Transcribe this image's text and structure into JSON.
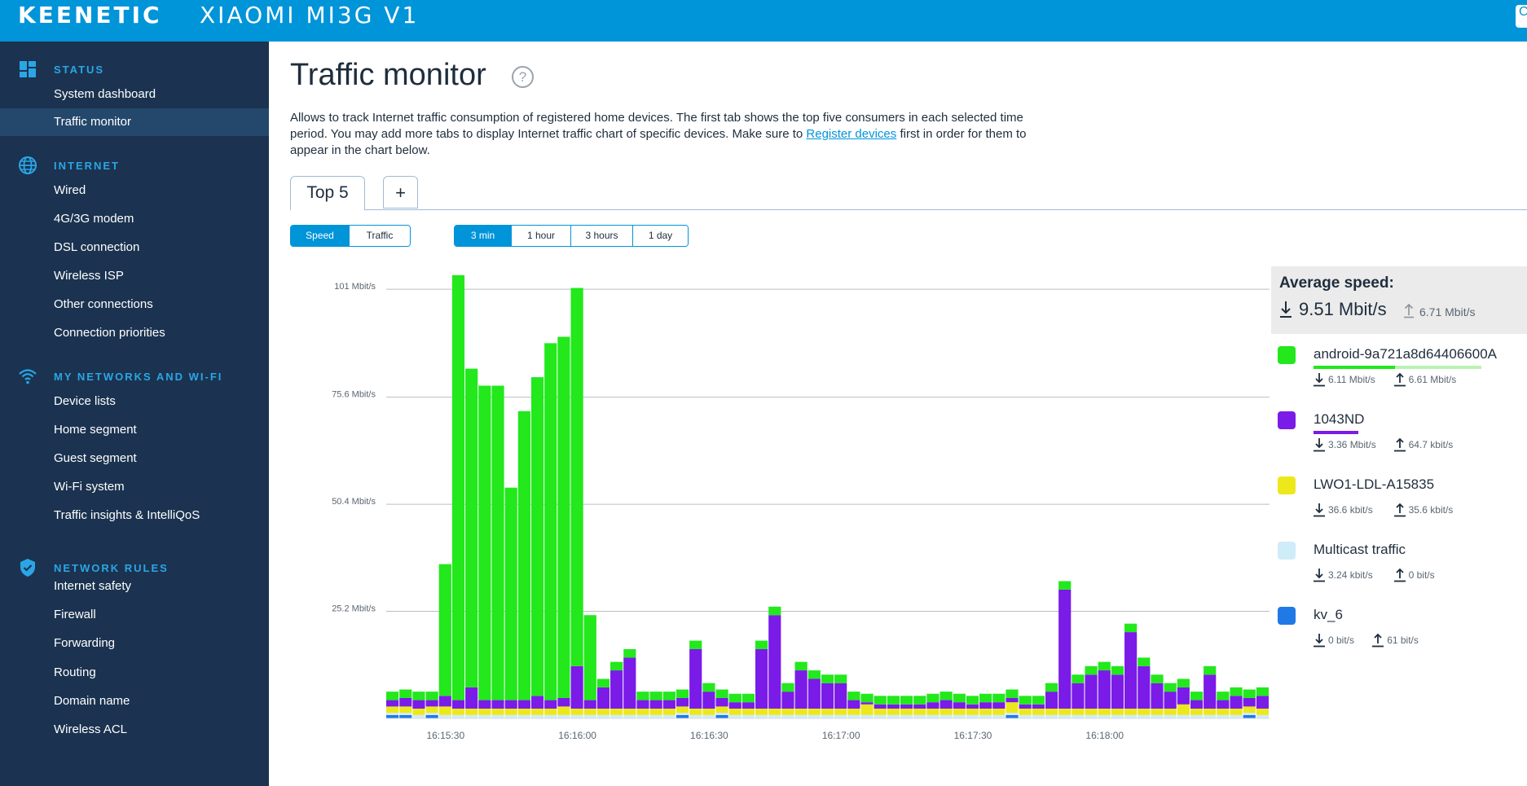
{
  "header": {
    "brand": "KEENETIC",
    "model": "XIAOMI MI3G V1",
    "corner_label": "C"
  },
  "sidebar": {
    "sections": [
      {
        "title": "STATUS",
        "icon": "dashboard-icon",
        "items": [
          "System dashboard",
          "Traffic monitor"
        ]
      },
      {
        "title": "INTERNET",
        "icon": "globe-icon",
        "items": [
          "Wired",
          "4G/3G modem",
          "DSL connection",
          "Wireless ISP",
          "Other connections",
          "Connection priorities"
        ]
      },
      {
        "title": "MY NETWORKS AND WI-FI",
        "icon": "wifi-icon",
        "items": [
          "Device lists",
          "Home segment",
          "Guest segment",
          "Wi-Fi system",
          "Traffic insights & IntelliQoS"
        ]
      },
      {
        "title": "NETWORK RULES",
        "icon": "shield-icon",
        "items": [
          "Internet safety",
          "Firewall",
          "Forwarding",
          "Routing",
          "Domain name",
          "Wireless ACL"
        ]
      }
    ],
    "active_item": "Traffic monitor"
  },
  "main": {
    "title": "Traffic monitor",
    "description_pre": "Allows to track Internet traffic consumption of registered home devices. The first tab shows the top five consumers in each selected time period. You may add more tabs to display Internet traffic chart of specific devices. Make sure to ",
    "description_link": "Register devices",
    "description_post": " first in order for them to appear in the chart below.",
    "tabs": [
      "Top 5",
      "+"
    ],
    "mode_toggle": {
      "options": [
        "Speed",
        "Traffic"
      ],
      "selected": "Speed"
    },
    "period_toggle": {
      "options": [
        "3 min",
        "1 hour",
        "3 hours",
        "1 day"
      ],
      "selected": "3 min"
    }
  },
  "legend": {
    "avg_title": "Average speed:",
    "avg_down": "9.51 Mbit/s",
    "avg_up": "6.71 Mbit/s",
    "devices": [
      {
        "name": "android-9a721a8d64406600A",
        "color": "#22e81c",
        "down": "6.11 Mbit/s",
        "up": "6.61 Mbit/s",
        "share": 0.4
      },
      {
        "name": "1043ND",
        "color": "#7a1be8",
        "down": "3.36 Mbit/s",
        "up": "64.7 kbit/s",
        "share": 0.22
      },
      {
        "name": "LWO1-LDL-A15835",
        "color": "#ece81c",
        "down": "36.6 kbit/s",
        "up": "35.6 kbit/s",
        "share": 0
      },
      {
        "name": "Multicast traffic",
        "color": "#cfecf9",
        "down": "3.24 kbit/s",
        "up": "0 bit/s",
        "share": 0
      },
      {
        "name": "kv_6",
        "color": "#1f7ae6",
        "down": "0 bit/s",
        "up": "61 bit/s",
        "share": 0
      }
    ]
  },
  "chart_data": {
    "type": "bar",
    "stacked": true,
    "y_tick_labels": [
      "101 Mbit/s",
      "75.6 Mbit/s",
      "50.4 Mbit/s",
      "25.2 Mbit/s"
    ],
    "y_ticks": [
      101,
      75.6,
      50.4,
      25.2
    ],
    "ylim": [
      0,
      106
    ],
    "x_tick_labels": [
      "16:15:30",
      "16:16:00",
      "16:16:30",
      "16:17:00",
      "16:17:30",
      "16:18:00"
    ],
    "x_tick_index": [
      4.5,
      14.5,
      24.5,
      34.5,
      44.5,
      54.5
    ],
    "series": [
      {
        "name": "kv_6",
        "color": "#1f7ae6",
        "values": [
          0.8,
          0.8,
          0,
          0.8,
          0,
          0,
          0,
          0,
          0,
          0,
          0,
          0,
          0,
          0,
          0,
          0,
          0,
          0,
          0,
          0,
          0,
          0,
          0.8,
          0,
          0,
          0.8,
          0,
          0,
          0,
          0,
          0,
          0,
          0,
          0,
          0,
          0,
          0,
          0,
          0,
          0,
          0,
          0,
          0,
          0,
          0,
          0,
          0,
          0.8,
          0,
          0,
          0,
          0,
          0,
          0,
          0,
          0,
          0,
          0,
          0,
          0,
          0,
          0,
          0,
          0,
          0,
          0.8,
          0
        ]
      },
      {
        "name": "Multicast traffic",
        "color": "#cfecf9",
        "values": [
          0.5,
          0.5,
          0.8,
          0.5,
          0.8,
          0.8,
          0.8,
          0.8,
          0.8,
          0.8,
          0.8,
          0.8,
          0.8,
          0.8,
          0.8,
          0.8,
          0.8,
          0.8,
          0.8,
          0.8,
          0.8,
          0.8,
          0.5,
          0.8,
          0.8,
          0.5,
          0.8,
          0.8,
          0.8,
          0.8,
          0.8,
          0.8,
          0.8,
          0.8,
          0.8,
          0.8,
          0.8,
          0.8,
          0.8,
          0.8,
          0.8,
          0.8,
          0.8,
          0.8,
          0.8,
          0.8,
          0.8,
          0.5,
          0.8,
          0.8,
          0.8,
          0.8,
          0.8,
          0.8,
          0.8,
          0.8,
          0.8,
          0.8,
          0.8,
          0.8,
          0.8,
          0.8,
          0.8,
          0.8,
          0.8,
          0.5,
          0.8
        ]
      },
      {
        "name": "LWO1-LDL-A15835",
        "color": "#ece81c",
        "values": [
          1.5,
          1.5,
          1.5,
          1.5,
          2.0,
          1.5,
          1.5,
          1.5,
          1.5,
          1.5,
          1.5,
          1.5,
          1.5,
          2.0,
          1.5,
          1.5,
          1.5,
          1.5,
          1.5,
          1.5,
          1.5,
          1.5,
          1.5,
          1.5,
          1.5,
          1.5,
          1.5,
          1.5,
          1.5,
          1.5,
          1.5,
          1.5,
          1.5,
          1.5,
          1.5,
          1.5,
          2.5,
          1.5,
          1.5,
          1.5,
          1.5,
          1.5,
          1.5,
          1.5,
          1.5,
          1.5,
          1.5,
          2.5,
          1.5,
          1.5,
          1.5,
          1.5,
          1.5,
          1.5,
          1.5,
          1.5,
          1.5,
          1.5,
          1.5,
          1.5,
          2.5,
          1.5,
          1.5,
          1.5,
          1.5,
          1.5,
          1.5
        ]
      },
      {
        "name": "1043ND",
        "color": "#7a1be8",
        "values": [
          1.5,
          2,
          2,
          1.5,
          2.5,
          2,
          5,
          2,
          2,
          2,
          2,
          3,
          2,
          2,
          10,
          2,
          5,
          9,
          12,
          2,
          2,
          2,
          2,
          14,
          4,
          2,
          1.5,
          1.5,
          14,
          22,
          4,
          9,
          7,
          6,
          6,
          2,
          0.5,
          1,
          1,
          1,
          1,
          1.5,
          2,
          1.5,
          1,
          1.5,
          1.5,
          1,
          1,
          1,
          4,
          28,
          6,
          8,
          9,
          8,
          18,
          10,
          6,
          4,
          4,
          2,
          8,
          2,
          3,
          2,
          3
        ]
      },
      {
        "name": "android-9a721a8d64406600A",
        "color": "#22e81c",
        "values": [
          2,
          2,
          2,
          2,
          31,
          100,
          75,
          74,
          74,
          50,
          68,
          75,
          84,
          85,
          89,
          20,
          2,
          2,
          2,
          2,
          2,
          2,
          2,
          2,
          2,
          2,
          2,
          2,
          2,
          2,
          2,
          2,
          2,
          2,
          2,
          2,
          2,
          2,
          2,
          2,
          2,
          2,
          2,
          2,
          2,
          2,
          2,
          2,
          2,
          2,
          2,
          2,
          2,
          2,
          2,
          2,
          2,
          2,
          2,
          2,
          2,
          2,
          2,
          2,
          2,
          2,
          2
        ]
      }
    ]
  }
}
